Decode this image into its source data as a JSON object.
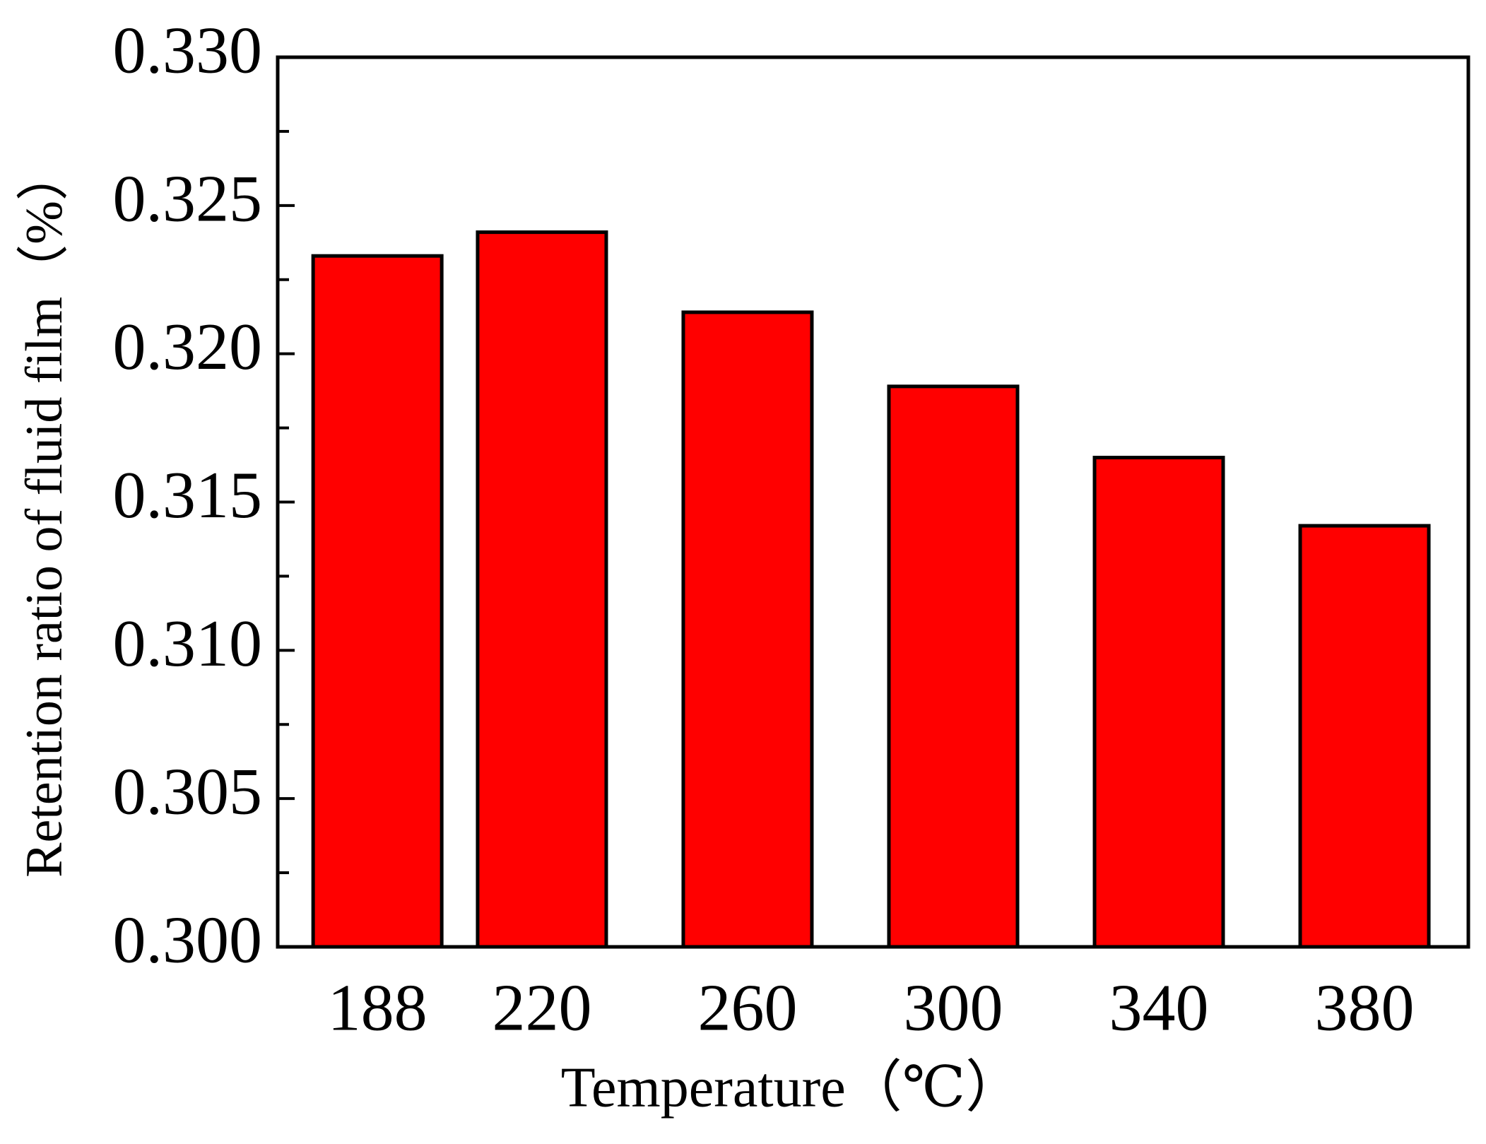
{
  "chart_data": {
    "type": "bar",
    "x_label": "Temperature（℃）",
    "y_label": "Retention ratio of fluid film（%）",
    "x": [
      188,
      220,
      260,
      300,
      340,
      380
    ],
    "values": [
      0.3233,
      0.3241,
      0.3214,
      0.3189,
      0.3165,
      0.3142
    ],
    "color": "#ff0000",
    "xlim": [
      168.6,
      400.2
    ],
    "xticks": [
      188,
      220,
      260,
      300,
      340,
      380
    ],
    "ylim": [
      0.3,
      0.33
    ],
    "yticks": [
      {
        "value": 0.3,
        "label": "0.300"
      },
      {
        "value": 0.305,
        "label": "0.305"
      },
      {
        "value": 0.31,
        "label": "0.310"
      },
      {
        "value": 0.315,
        "label": "0.315"
      },
      {
        "value": 0.32,
        "label": "0.320"
      },
      {
        "value": 0.325,
        "label": "0.325"
      },
      {
        "value": 0.33,
        "label": "0.330"
      }
    ],
    "y_minor_ticks": [
      0.3025,
      0.3075,
      0.3125,
      0.3175,
      0.3225,
      0.3275
    ],
    "grid": false
  }
}
